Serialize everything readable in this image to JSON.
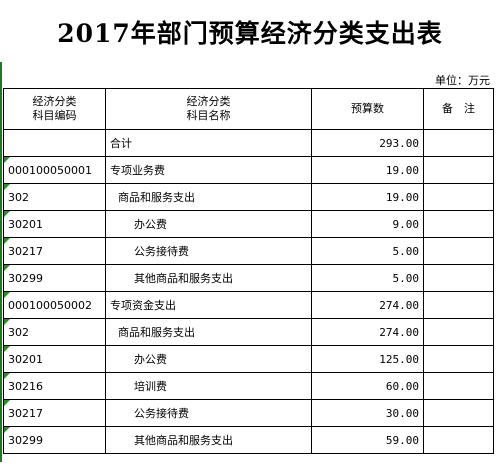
{
  "title": "2017年部门预算经济分类支出表",
  "unit": "单位：万元",
  "headers": {
    "code_line1": "经济分类",
    "code_line2": "科目编码",
    "name_line1": "经济分类",
    "name_line2": "科目名称",
    "amount": "预算数",
    "note": "备　注"
  },
  "rows": [
    {
      "code": "",
      "name": "合计",
      "amount": "293.00",
      "note": ""
    },
    {
      "code": "000100050001",
      "name": "专项业务费",
      "amount": "19.00",
      "note": ""
    },
    {
      "code": "302",
      "name": "商品和服务支出",
      "amount": "19.00",
      "note": ""
    },
    {
      "code": "30201",
      "name": "办公费",
      "amount": "9.00",
      "note": ""
    },
    {
      "code": "30217",
      "name": "公务接待费",
      "amount": "5.00",
      "note": ""
    },
    {
      "code": "30299",
      "name": "其他商品和服务支出",
      "amount": "5.00",
      "note": ""
    },
    {
      "code": "000100050002",
      "name": "专项资金支出",
      "amount": "274.00",
      "note": ""
    },
    {
      "code": "302",
      "name": "商品和服务支出",
      "amount": "274.00",
      "note": ""
    },
    {
      "code": "30201",
      "name": "办公费",
      "amount": "125.00",
      "note": ""
    },
    {
      "code": "30216",
      "name": "培训费",
      "amount": "60.00",
      "note": ""
    },
    {
      "code": "30217",
      "name": "公务接待费",
      "amount": "30.00",
      "note": ""
    },
    {
      "code": "30299",
      "name": "其他商品和服务支出",
      "amount": "59.00",
      "note": ""
    }
  ]
}
